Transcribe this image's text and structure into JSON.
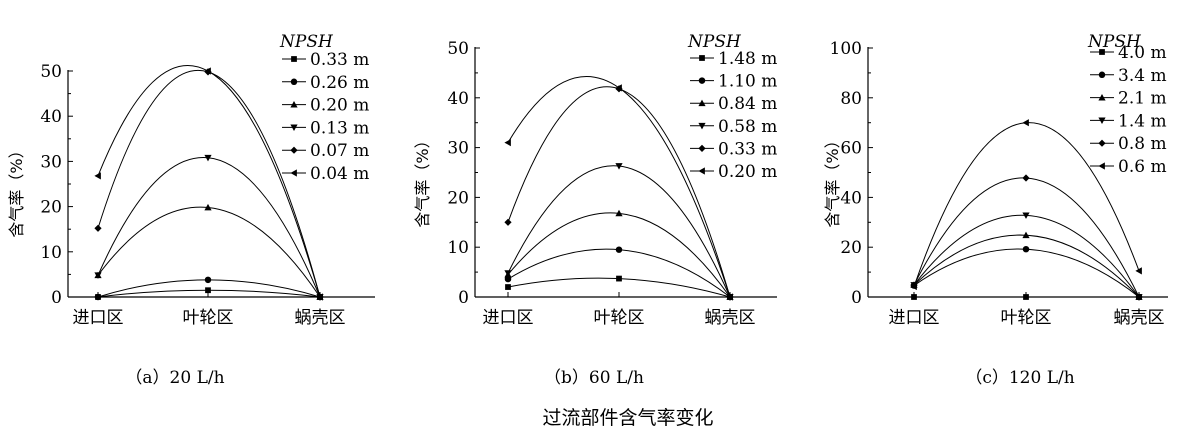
{
  "figure_caption": "过流部件含气率变化",
  "chart_data": [
    {
      "type": "line",
      "caption": "（a）20 L/h",
      "ylabel": "含气率（%）",
      "xlabel": "",
      "categories": [
        "进口区",
        "叶轮区",
        "蜗壳区"
      ],
      "ylim": [
        0,
        50
      ],
      "yticks": [
        0,
        10,
        20,
        30,
        40,
        50
      ],
      "legend_title": "NPSH",
      "legend_position": "top-right",
      "series": [
        {
          "name": "0.33 m",
          "marker": "square",
          "values": [
            0,
            1.5,
            0
          ]
        },
        {
          "name": "0.26 m",
          "marker": "circle",
          "values": [
            0,
            3.8,
            0
          ]
        },
        {
          "name": "0.20 m",
          "marker": "triangle-up",
          "values": [
            4.8,
            19.8,
            0
          ]
        },
        {
          "name": "0.13 m",
          "marker": "triangle-down",
          "values": [
            4.8,
            30.8,
            0
          ]
        },
        {
          "name": "0.07 m",
          "marker": "diamond",
          "values": [
            15.2,
            49.8,
            0
          ]
        },
        {
          "name": "0.04 m",
          "marker": "triangle-left",
          "values": [
            26.8,
            50,
            0
          ]
        }
      ]
    },
    {
      "type": "line",
      "caption": "（b）60 L/h",
      "ylabel": "含气率（%）",
      "xlabel": "",
      "categories": [
        "进口区",
        "叶轮区",
        "蜗壳区"
      ],
      "ylim": [
        0,
        50
      ],
      "yticks": [
        0,
        10,
        20,
        30,
        40,
        50
      ],
      "legend_title": "NPSH",
      "legend_position": "top-right",
      "series": [
        {
          "name": "1.48 m",
          "marker": "square",
          "values": [
            2,
            3.7,
            0
          ]
        },
        {
          "name": "1.10 m",
          "marker": "circle",
          "values": [
            3.6,
            9.5,
            0
          ]
        },
        {
          "name": "0.84 m",
          "marker": "triangle-up",
          "values": [
            4.5,
            16.8,
            0
          ]
        },
        {
          "name": "0.58 m",
          "marker": "triangle-down",
          "values": [
            4.8,
            26.3,
            0
          ]
        },
        {
          "name": "0.33 m",
          "marker": "diamond",
          "values": [
            15,
            41.8,
            0
          ]
        },
        {
          "name": "0.20 m",
          "marker": "triangle-left",
          "values": [
            31,
            42,
            0
          ]
        }
      ]
    },
    {
      "type": "line",
      "caption": "（c）120 L/h",
      "ylabel": "含气率（%）",
      "xlabel": "",
      "categories": [
        "进口区",
        "叶轮区",
        "蜗壳区"
      ],
      "ylim": [
        0,
        100
      ],
      "yticks": [
        0,
        20,
        40,
        60,
        80,
        100
      ],
      "legend_title": "NPSH",
      "legend_position": "top-right",
      "series": [
        {
          "name": "4.0 m",
          "marker": "square",
          "values": [
            0,
            0,
            0
          ]
        },
        {
          "name": "3.4 m",
          "marker": "circle",
          "values": [
            4.6,
            19.2,
            0
          ]
        },
        {
          "name": "2.1 m",
          "marker": "triangle-up",
          "values": [
            4.8,
            24.8,
            0
          ]
        },
        {
          "name": "1.4 m",
          "marker": "triangle-down",
          "values": [
            4.8,
            32.8,
            0
          ]
        },
        {
          "name": "0.8 m",
          "marker": "diamond",
          "values": [
            4.8,
            47.8,
            0
          ]
        },
        {
          "name": "0.6 m",
          "marker": "triangle-left",
          "values": [
            4.2,
            70,
            10.5
          ]
        }
      ]
    }
  ]
}
